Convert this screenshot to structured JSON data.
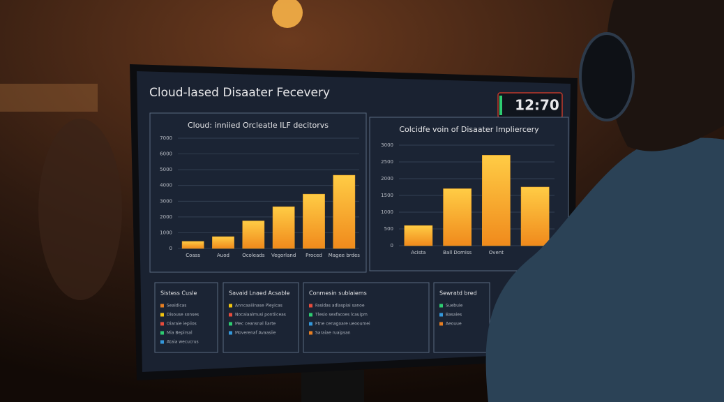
{
  "screen": {
    "title": "Cloud-lased Disaater Fecevery",
    "clock": "12:70"
  },
  "charts": [
    {
      "type": "bar",
      "title": "Cloud: inniied Orcleatle ILF decitorvs",
      "categories": [
        "Coass",
        "Auod",
        "Ocoleads",
        "Vegorland",
        "Proced",
        "Magee brdes"
      ],
      "values": [
        450,
        750,
        1750,
        2650,
        3450,
        4650
      ],
      "color": "#f5a623",
      "ylim": [
        0,
        7000
      ],
      "yticks": [
        0,
        1000,
        2000,
        3000,
        4000,
        5000,
        6000,
        7000
      ],
      "grid": true
    },
    {
      "type": "bar",
      "title": "Colcidfe voin of Disaater Impliercery",
      "categories": [
        "Acista",
        "Ball Domiss",
        "Ovent",
        null
      ],
      "values": [
        600,
        1700,
        2700,
        1750
      ],
      "color": "#f5a623",
      "ylim": [
        0,
        3000
      ],
      "yticks": [
        0,
        500,
        1000,
        1500,
        2000,
        2500,
        3000
      ],
      "grid": true
    }
  ],
  "panels": [
    {
      "title": "Sistess Cusle",
      "items": [
        "Seaidicas",
        "Disouse sonses",
        "Oiaraie iepiios",
        "Mia Bepirsal",
        "Ataia wecucrus"
      ]
    },
    {
      "title": "Savaid Lnaed Acsable",
      "items": [
        "Anncaaiiinase Pleyicas",
        "Nocaiaalmusi pontiiceas",
        "Mec ceansnal liarte",
        "Moverenaf Avaasiie"
      ]
    },
    {
      "title": "Conmesin sublaiems",
      "items": [
        "Fasidas adlaspiai sanoe",
        "Tlesio sexfacoes lcauipm",
        "Ftne cenagoare ueooumei",
        "Saraiae ruaipsan"
      ]
    },
    {
      "title": "Sewratd bred",
      "items": [
        "Suebuie",
        "Basaies",
        "Aeouue"
      ]
    }
  ]
}
